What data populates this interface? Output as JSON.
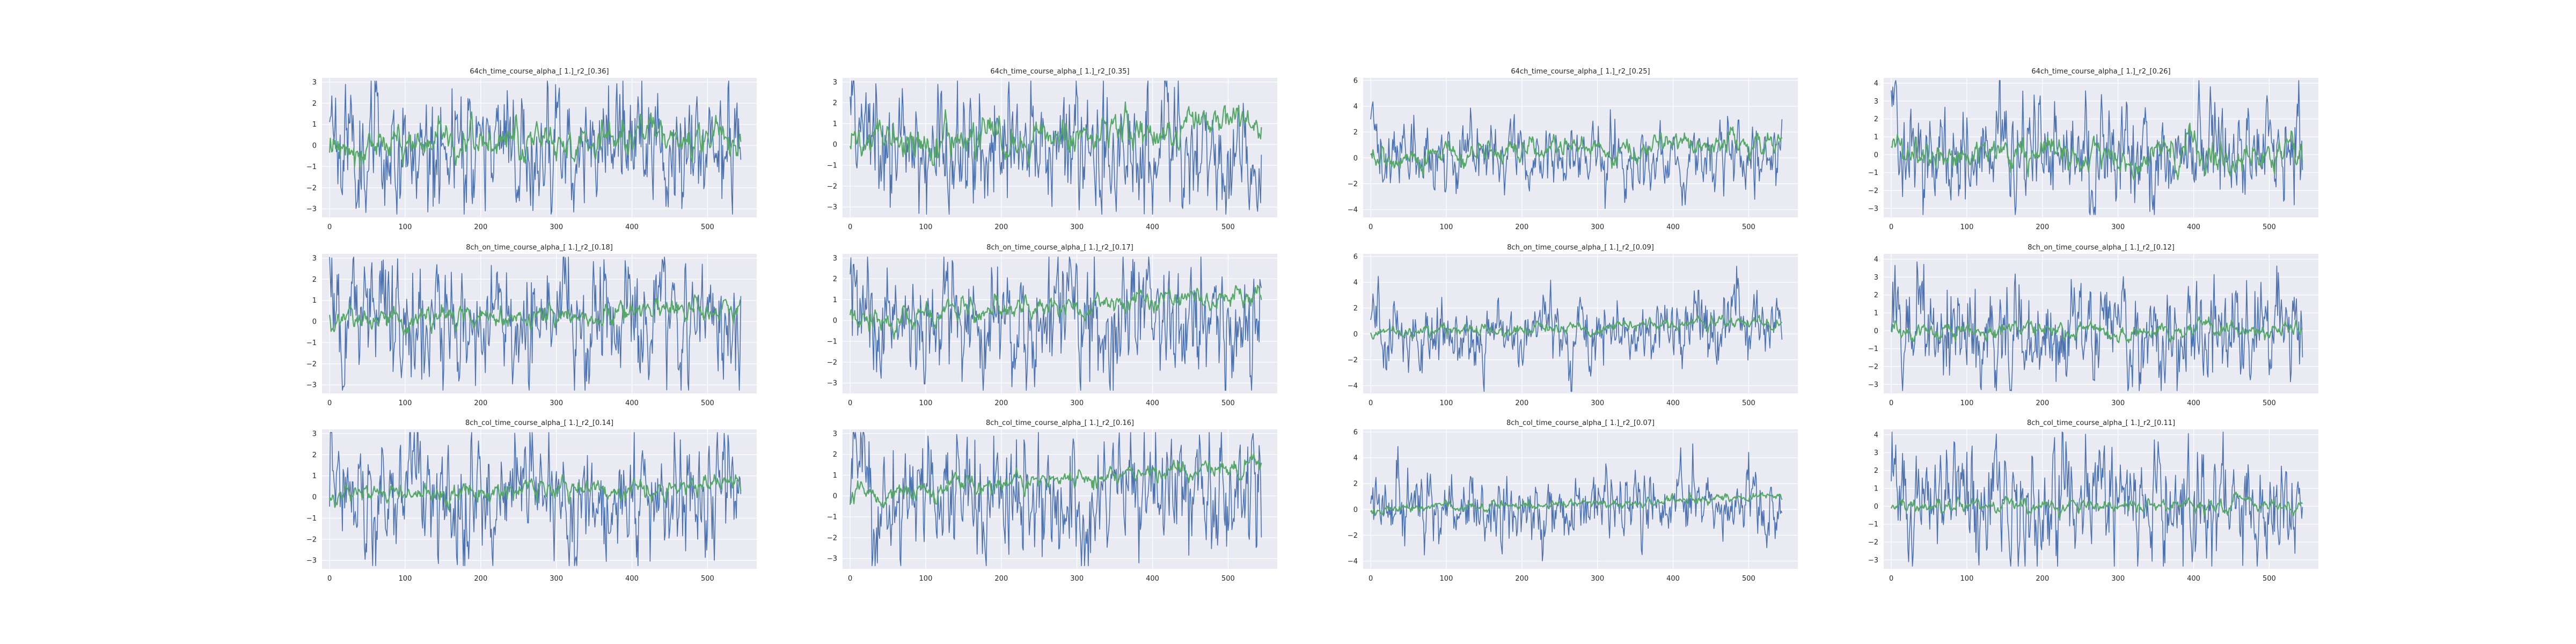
{
  "figure": {
    "background": "#ffffff",
    "axes_face": "#eaeaf2",
    "grid_color": "#ffffff",
    "series_colors": {
      "signal": "#4c72b0",
      "fit": "#55a868"
    }
  },
  "chart_data": [
    {
      "type": "line",
      "title": "64ch_time_course_alpha_[ 1.]_r2_[0.36]",
      "xlim": [
        -10,
        565
      ],
      "ylim": [
        -3.4,
        3.2
      ],
      "xticks": [
        0,
        100,
        200,
        300,
        400,
        500
      ],
      "yticks": [
        -3,
        -2,
        -1,
        0,
        1,
        2,
        3
      ],
      "grid": true,
      "series": [
        {
          "amplitude": 2.4,
          "seed": 11
        },
        {
          "start": 0.0,
          "trend": 0.45,
          "noise": 0.55,
          "seed": 12
        }
      ]
    },
    {
      "type": "line",
      "title": "64ch_time_course_alpha_[ 1.]_r2_[0.35]",
      "xlim": [
        -10,
        565
      ],
      "ylim": [
        -3.5,
        3.2
      ],
      "xticks": [
        0,
        100,
        200,
        300,
        400,
        500
      ],
      "yticks": [
        -3,
        -2,
        -1,
        0,
        1,
        2,
        3
      ],
      "grid": true,
      "series": [
        {
          "amplitude": 2.5,
          "seed": 21
        },
        {
          "start": 0.0,
          "trend": 0.9,
          "noise": 0.55,
          "seed": 22
        }
      ]
    },
    {
      "type": "line",
      "title": "64ch_time_course_alpha_[ 1.]_r2_[0.25]",
      "xlim": [
        -10,
        565
      ],
      "ylim": [
        -4.6,
        6.2
      ],
      "xticks": [
        0,
        100,
        200,
        300,
        400,
        500
      ],
      "yticks": [
        -4,
        -2,
        0,
        2,
        4,
        6
      ],
      "grid": true,
      "series": [
        {
          "amplitude": 2.2,
          "seed": 31
        },
        {
          "start": 0.0,
          "trend": 1.1,
          "noise": 0.6,
          "seed": 32
        }
      ]
    },
    {
      "type": "line",
      "title": "64ch_time_course_alpha_[ 1.]_r2_[0.26]",
      "xlim": [
        -10,
        565
      ],
      "ylim": [
        -3.5,
        4.3
      ],
      "xticks": [
        0,
        100,
        200,
        300,
        400,
        500
      ],
      "yticks": [
        -3,
        -2,
        -1,
        0,
        1,
        2,
        3,
        4
      ],
      "grid": true,
      "series": [
        {
          "amplitude": 2.6,
          "seed": 41
        },
        {
          "start": 0.0,
          "trend": 0.0,
          "noise": 0.6,
          "seed": 42
        }
      ]
    },
    {
      "type": "line",
      "title": "8ch_on_time_course_alpha_[ 1.]_r2_[0.18]",
      "xlim": [
        -10,
        565
      ],
      "ylim": [
        -3.4,
        3.2
      ],
      "xticks": [
        0,
        100,
        200,
        300,
        400,
        500
      ],
      "yticks": [
        -3,
        -2,
        -1,
        0,
        1,
        2,
        3
      ],
      "grid": true,
      "series": [
        {
          "amplitude": 2.4,
          "seed": 51
        },
        {
          "start": 0.0,
          "trend": 0.6,
          "noise": 0.35,
          "seed": 52
        }
      ]
    },
    {
      "type": "line",
      "title": "8ch_on_time_course_alpha_[ 1.]_r2_[0.17]",
      "xlim": [
        -10,
        565
      ],
      "ylim": [
        -3.5,
        3.2
      ],
      "xticks": [
        0,
        100,
        200,
        300,
        400,
        500
      ],
      "yticks": [
        -3,
        -2,
        -1,
        0,
        1,
        2,
        3
      ],
      "grid": true,
      "series": [
        {
          "amplitude": 2.5,
          "seed": 61
        },
        {
          "start": 0.0,
          "trend": 1.3,
          "noise": 0.35,
          "seed": 62
        }
      ]
    },
    {
      "type": "line",
      "title": "8ch_on_time_course_alpha_[ 1.]_r2_[0.09]",
      "xlim": [
        -10,
        565
      ],
      "ylim": [
        -4.6,
        6.2
      ],
      "xticks": [
        0,
        100,
        200,
        300,
        400,
        500
      ],
      "yticks": [
        -4,
        -2,
        0,
        2,
        4,
        6
      ],
      "grid": true,
      "series": [
        {
          "amplitude": 2.2,
          "seed": 71
        },
        {
          "start": 0.0,
          "trend": 1.0,
          "noise": 0.3,
          "seed": 72
        }
      ]
    },
    {
      "type": "line",
      "title": "8ch_on_time_course_alpha_[ 1.]_r2_[0.12]",
      "xlim": [
        -10,
        565
      ],
      "ylim": [
        -3.5,
        4.3
      ],
      "xticks": [
        0,
        100,
        200,
        300,
        400,
        500
      ],
      "yticks": [
        -3,
        -2,
        -1,
        0,
        1,
        2,
        3,
        4
      ],
      "grid": true,
      "series": [
        {
          "amplitude": 2.6,
          "seed": 81
        },
        {
          "start": 0.0,
          "trend": 0.0,
          "noise": 0.3,
          "seed": 82
        }
      ]
    },
    {
      "type": "line",
      "title": "8ch_col_time_course_alpha_[ 1.]_r2_[0.14]",
      "xlim": [
        -10,
        565
      ],
      "ylim": [
        -3.4,
        3.2
      ],
      "xticks": [
        0,
        100,
        200,
        300,
        400,
        500
      ],
      "yticks": [
        -3,
        -2,
        -1,
        0,
        1,
        2,
        3
      ],
      "grid": true,
      "series": [
        {
          "amplitude": 2.4,
          "seed": 91
        },
        {
          "start": 0.0,
          "trend": 0.6,
          "noise": 0.3,
          "seed": 92
        }
      ]
    },
    {
      "type": "line",
      "title": "8ch_col_time_course_alpha_[ 1.]_r2_[0.16]",
      "xlim": [
        -10,
        565
      ],
      "ylim": [
        -3.5,
        3.2
      ],
      "xticks": [
        0,
        100,
        200,
        300,
        400,
        500
      ],
      "yticks": [
        -3,
        -2,
        -1,
        0,
        1,
        2,
        3
      ],
      "grid": true,
      "series": [
        {
          "amplitude": 2.5,
          "seed": 101
        },
        {
          "start": 0.0,
          "trend": 1.4,
          "noise": 0.3,
          "seed": 102
        }
      ]
    },
    {
      "type": "line",
      "title": "8ch_col_time_course_alpha_[ 1.]_r2_[0.07]",
      "xlim": [
        -10,
        565
      ],
      "ylim": [
        -4.6,
        6.2
      ],
      "xticks": [
        0,
        100,
        200,
        300,
        400,
        500
      ],
      "yticks": [
        -4,
        -2,
        0,
        2,
        4,
        6
      ],
      "grid": true,
      "series": [
        {
          "amplitude": 2.2,
          "seed": 111
        },
        {
          "start": 0.0,
          "trend": 1.0,
          "noise": 0.25,
          "seed": 112
        }
      ]
    },
    {
      "type": "line",
      "title": "8ch_col_time_course_alpha_[ 1.]_r2_[0.11]",
      "xlim": [
        -10,
        565
      ],
      "ylim": [
        -3.5,
        4.3
      ],
      "xticks": [
        0,
        100,
        200,
        300,
        400,
        500
      ],
      "yticks": [
        -3,
        -2,
        -1,
        0,
        1,
        2,
        3,
        4
      ],
      "grid": true,
      "series": [
        {
          "amplitude": 2.6,
          "seed": 121
        },
        {
          "start": 0.0,
          "trend": 0.0,
          "noise": 0.25,
          "seed": 122
        }
      ]
    }
  ]
}
